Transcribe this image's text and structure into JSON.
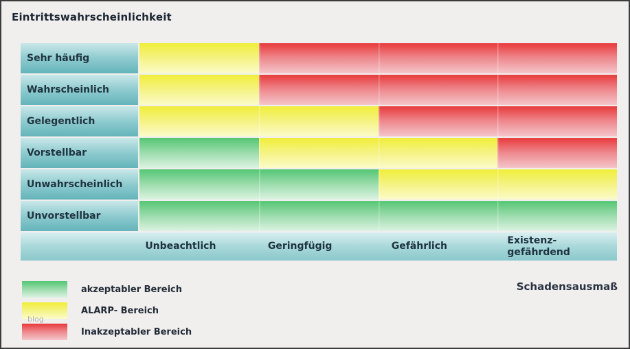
{
  "chart_data": {
    "type": "heatmap",
    "title": "Eintrittswahrscheinlichkeit",
    "ylabel": "Eintrittswahrscheinlichkeit",
    "xlabel": "Schadensausmaß",
    "y_categories": [
      "Sehr häufig",
      "Wahrscheinlich",
      "Gelegentlich",
      "Vorstellbar",
      "Unwahrscheinlich",
      "Unvorstellbar"
    ],
    "x_categories": [
      "Unbeachtlich",
      "Geringfügig",
      "Gefährlich",
      "Existenz-gefährdend"
    ],
    "x_categories_display": [
      "Unbeachtlich",
      "Geringfügig",
      "Gefährlich",
      "Existenz-\ngefährdend"
    ],
    "values": [
      [
        "ALARP",
        "inakzeptabel",
        "inakzeptabel",
        "inakzeptabel"
      ],
      [
        "ALARP",
        "inakzeptabel",
        "inakzeptabel",
        "inakzeptabel"
      ],
      [
        "ALARP",
        "ALARP",
        "inakzeptabel",
        "inakzeptabel"
      ],
      [
        "akzeptabel",
        "ALARP",
        "ALARP",
        "inakzeptabel"
      ],
      [
        "akzeptabel",
        "akzeptabel",
        "ALARP",
        "ALARP"
      ],
      [
        "akzeptabel",
        "akzeptabel",
        "akzeptabel",
        "akzeptabel"
      ]
    ],
    "legend_position": "bottom-left",
    "grid": false
  },
  "legend": [
    {
      "zone": "akzeptabel",
      "label": "akzeptabler Bereich"
    },
    {
      "zone": "alarp",
      "label": "ALARP- Bereich"
    },
    {
      "zone": "inakzeptabel",
      "label": "Inakzeptabler Bereich"
    }
  ],
  "colors": {
    "akzeptabel": [
      "#54c673",
      "#9ddcae",
      "#dcf2e1"
    ],
    "alarp": [
      "#f0ee3a",
      "#f5f384",
      "#fbfbca"
    ],
    "inakzeptabel": [
      "#e83a3b",
      "#ee8a8f",
      "#f4c5ca"
    ],
    "label_cell": [
      "#c9e7e9",
      "#8ecbcf",
      "#64b4ba"
    ],
    "header_band": [
      "#d9eff0",
      "#a9d8da",
      "#8cc8cb"
    ]
  },
  "watermark": "blog"
}
